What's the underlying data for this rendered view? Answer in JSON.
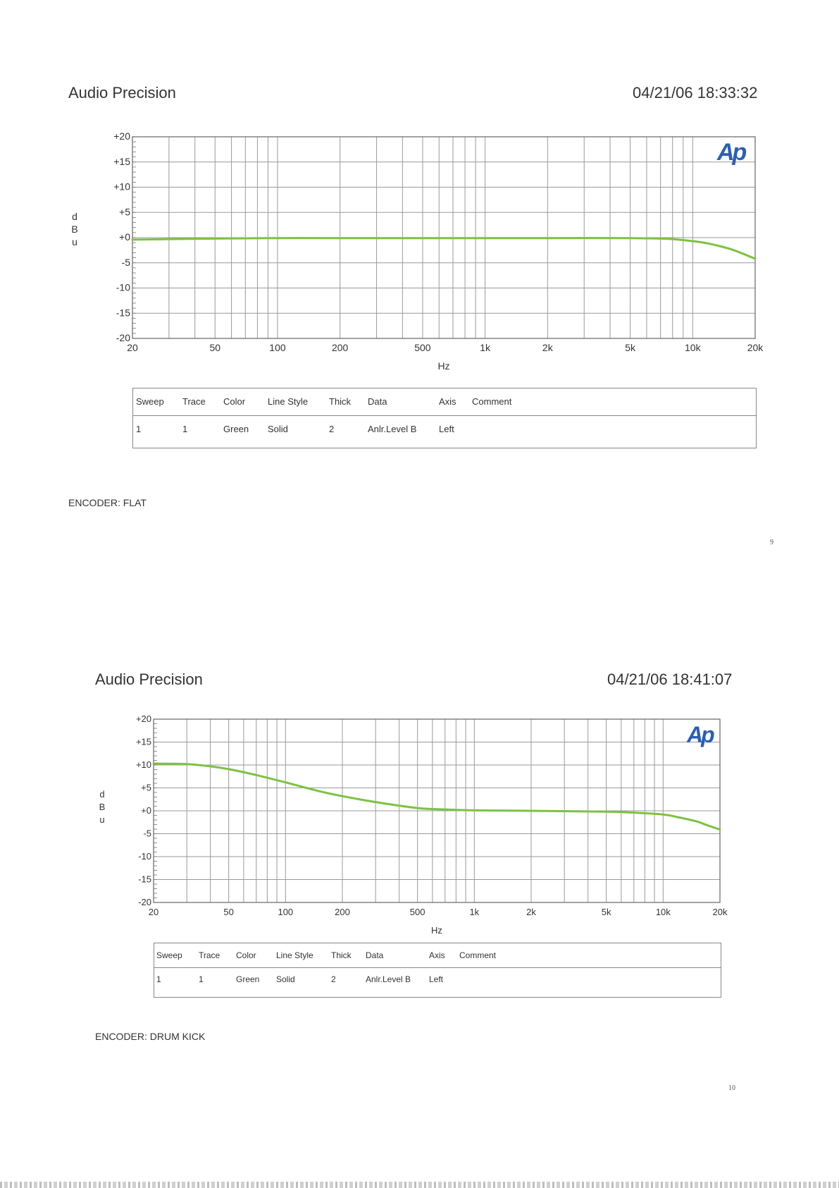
{
  "reports": [
    {
      "brand": "Audio Precision",
      "timestamp": "04/21/06 18:33:32",
      "encoder": "ENCODER: FLAT",
      "page_number": "9",
      "legend": {
        "headers": [
          "Sweep",
          "Trace",
          "Color",
          "Line Style",
          "Thick",
          "Data",
          "Axis",
          "Comment"
        ],
        "row": [
          "1",
          "1",
          "Green",
          "Solid",
          "2",
          "Anlr.Level B",
          "Left",
          ""
        ]
      }
    },
    {
      "brand": "Audio Precision",
      "timestamp": "04/21/06 18:41:07",
      "encoder": "ENCODER: DRUM KICK",
      "page_number": "10",
      "legend": {
        "headers": [
          "Sweep",
          "Trace",
          "Color",
          "Line Style",
          "Thick",
          "Data",
          "Axis",
          "Comment"
        ],
        "row": [
          "1",
          "1",
          "Green",
          "Solid",
          "2",
          "Anlr.Level B",
          "Left",
          ""
        ]
      }
    }
  ],
  "logo_text": "Ap",
  "colors": {
    "trace": "#7dc242",
    "logo": "#2b5fb4",
    "grid": "#9a9a9a"
  },
  "chart_data": [
    {
      "type": "line",
      "xlabel": "Hz",
      "ylabel": "dBu",
      "x_scale": "log",
      "xlim": [
        20,
        20000
      ],
      "ylim": [
        -20,
        20
      ],
      "x_ticks": [
        "20",
        "50",
        "100",
        "200",
        "500",
        "1k",
        "2k",
        "5k",
        "10k",
        "20k"
      ],
      "y_ticks": [
        "+20",
        "+15",
        "+10",
        "+5",
        "+0",
        "-5",
        "-10",
        "-15",
        "-20"
      ],
      "grid": true,
      "series": [
        {
          "x": [
            20,
            30,
            50,
            100,
            200,
            500,
            1000,
            2000,
            5000,
            7000,
            8000,
            10000,
            12000,
            15000,
            17000,
            20000
          ],
          "y": [
            -0.4,
            -0.3,
            -0.2,
            -0.1,
            -0.1,
            -0.1,
            -0.1,
            -0.1,
            -0.1,
            -0.2,
            -0.3,
            -0.7,
            -1.2,
            -2.2,
            -3.0,
            -4.2
          ]
        }
      ]
    },
    {
      "type": "line",
      "xlabel": "Hz",
      "ylabel": "dBu",
      "x_scale": "log",
      "xlim": [
        20,
        20000
      ],
      "ylim": [
        -20,
        20
      ],
      "x_ticks": [
        "20",
        "50",
        "100",
        "200",
        "500",
        "1k",
        "2k",
        "5k",
        "10k",
        "20k"
      ],
      "y_ticks": [
        "+20",
        "+15",
        "+10",
        "+5",
        "+0",
        "-5",
        "-10",
        "-15",
        "-20"
      ],
      "grid": true,
      "series": [
        {
          "x": [
            20,
            30,
            40,
            50,
            70,
            100,
            150,
            200,
            300,
            500,
            700,
            1000,
            2000,
            5000,
            7000,
            10000,
            12000,
            15000,
            17000,
            20000
          ],
          "y": [
            10.3,
            10.2,
            9.7,
            9.1,
            7.8,
            6.2,
            4.3,
            3.2,
            1.9,
            0.6,
            0.3,
            0.1,
            0.0,
            -0.2,
            -0.4,
            -0.8,
            -1.4,
            -2.3,
            -3.1,
            -4.1
          ]
        }
      ]
    }
  ]
}
